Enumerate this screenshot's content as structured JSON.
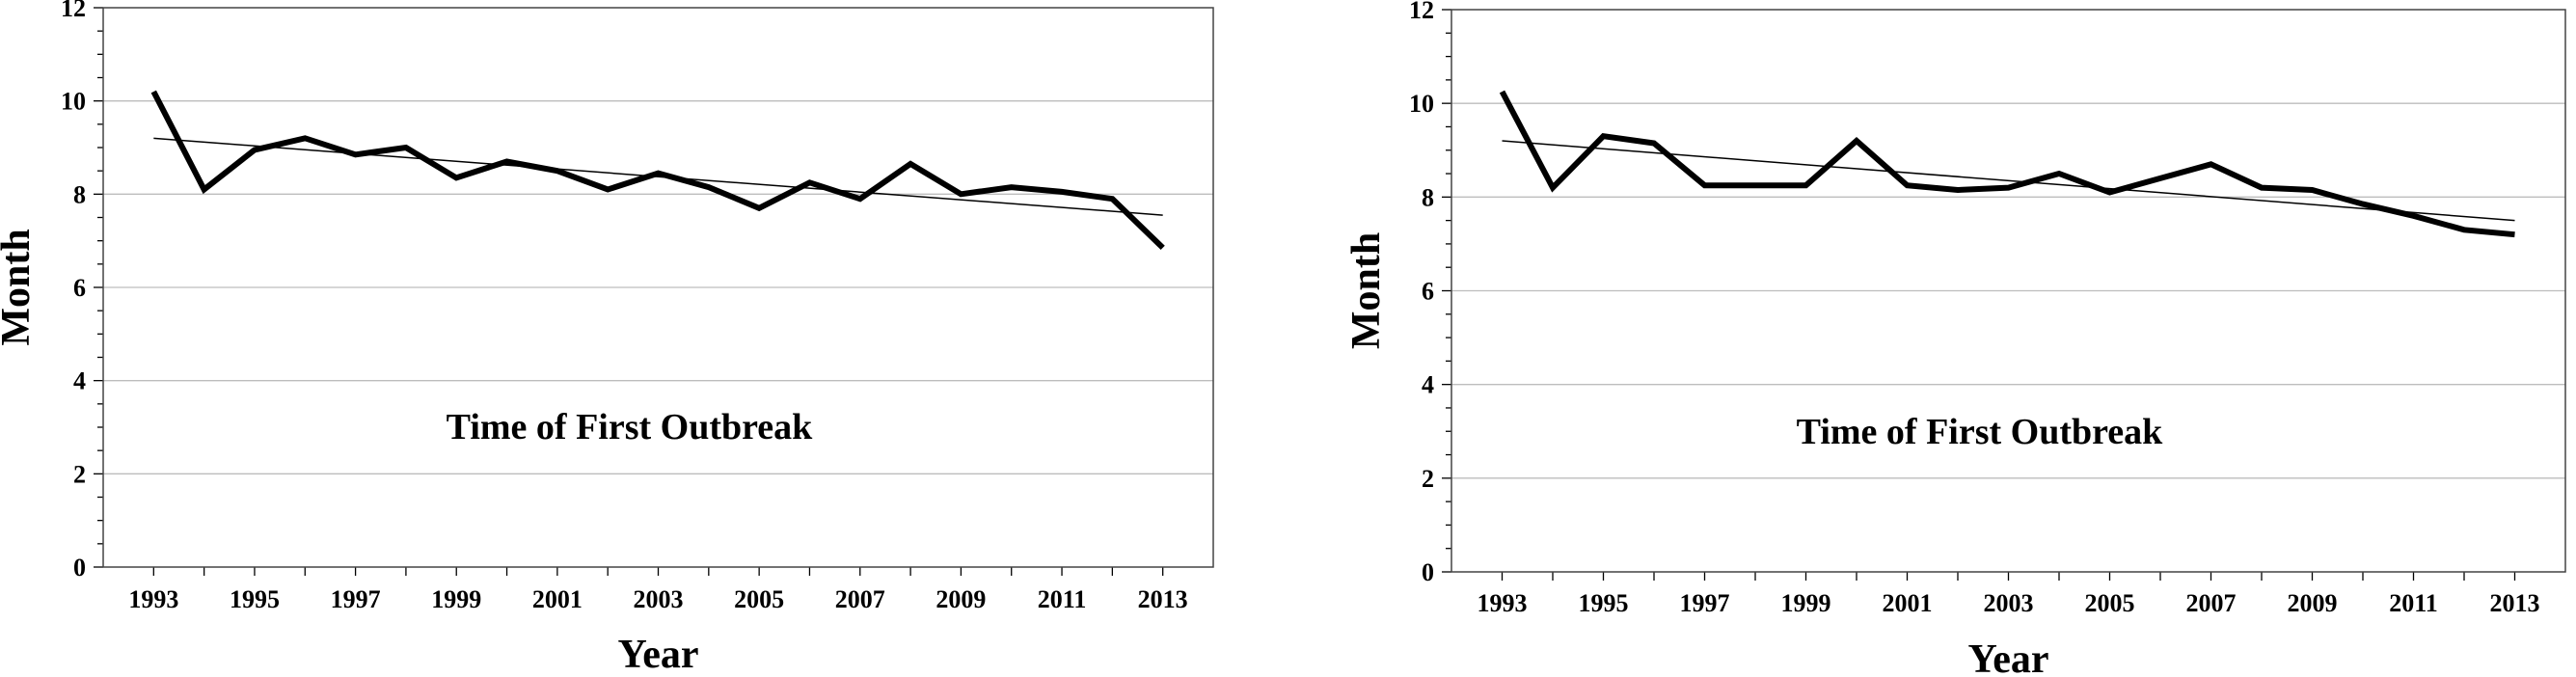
{
  "chart_data": [
    {
      "type": "line",
      "xlabel": "Year",
      "ylabel": "Month",
      "annotation": "Time of First Outbreak",
      "xlim": [
        1992,
        2014
      ],
      "ylim": [
        0,
        12
      ],
      "x_ticks": [
        1993,
        1995,
        1997,
        1999,
        2001,
        2003,
        2005,
        2007,
        2009,
        2011,
        2013
      ],
      "x_tick_labels": [
        "1993",
        "1995",
        "1997",
        "1999",
        "2001",
        "2003",
        "2005",
        "2007",
        "2009",
        "2011",
        "2013"
      ],
      "y_ticks": [
        0,
        2,
        4,
        6,
        8,
        10,
        12
      ],
      "y_tick_labels": [
        "0",
        "2",
        "4",
        "6",
        "8",
        "10",
        "12"
      ],
      "grid": true,
      "x": [
        1993,
        1994,
        1995,
        1996,
        1997,
        1998,
        1999,
        2000,
        2001,
        2002,
        2003,
        2004,
        2005,
        2006,
        2007,
        2008,
        2009,
        2010,
        2011,
        2012,
        2013
      ],
      "series": [
        {
          "values": [
            10.2,
            8.1,
            8.95,
            9.2,
            8.85,
            9.0,
            8.35,
            8.7,
            8.5,
            8.1,
            8.45,
            8.15,
            7.7,
            8.25,
            7.9,
            8.65,
            8.0,
            8.15,
            8.05,
            7.9,
            6.85
          ]
        }
      ],
      "trendline": {
        "start": [
          1993,
          9.2
        ],
        "end": [
          2013,
          7.55
        ]
      }
    },
    {
      "type": "line",
      "xlabel": "Year",
      "ylabel": "Month",
      "annotation": "Time of First Outbreak",
      "xlim": [
        1992,
        2014
      ],
      "ylim": [
        0,
        12
      ],
      "x_ticks": [
        1993,
        1995,
        1997,
        1999,
        2001,
        2003,
        2005,
        2007,
        2009,
        2011,
        2013
      ],
      "x_tick_labels": [
        "1993",
        "1995",
        "1997",
        "1999",
        "2001",
        "2003",
        "2005",
        "2007",
        "2009",
        "2011",
        "2013"
      ],
      "y_ticks": [
        0,
        2,
        4,
        6,
        8,
        10,
        12
      ],
      "y_tick_labels": [
        "0",
        "2",
        "4",
        "6",
        "8",
        "10",
        "12"
      ],
      "grid": true,
      "x": [
        1993,
        1994,
        1995,
        1996,
        1997,
        1998,
        1999,
        2000,
        2001,
        2002,
        2003,
        2004,
        2005,
        2006,
        2007,
        2008,
        2009,
        2010,
        2011,
        2012,
        2013
      ],
      "series": [
        {
          "values": [
            10.25,
            8.2,
            9.3,
            9.15,
            8.25,
            8.25,
            8.25,
            9.2,
            8.25,
            8.15,
            8.2,
            8.5,
            8.1,
            8.4,
            8.7,
            8.2,
            8.15,
            7.85,
            7.6,
            7.3,
            7.2
          ]
        }
      ],
      "trendline": {
        "start": [
          1993,
          9.2
        ],
        "end": [
          2013,
          7.5
        ]
      }
    }
  ]
}
